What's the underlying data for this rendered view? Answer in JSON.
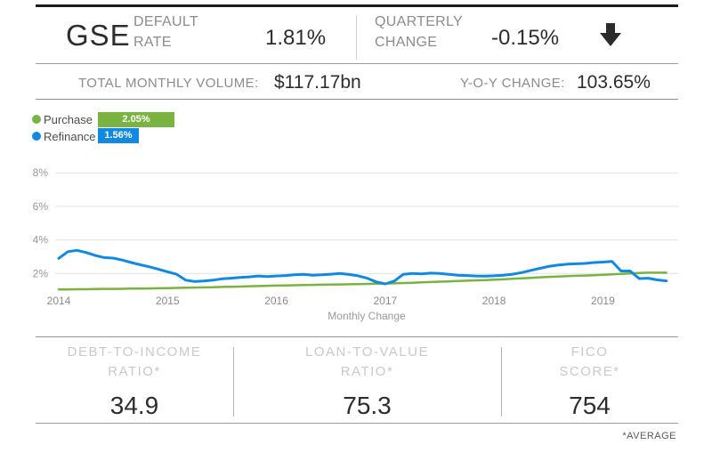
{
  "header": {
    "title": "GSE",
    "default_rate_label": "DEFAULT RATE",
    "default_rate_value": "1.81%",
    "quarterly_change_label": "QUARTERLY CHANGE",
    "quarterly_change_value": "-0.15%",
    "trend_direction": "down",
    "trend_icon": "down-arrow-icon",
    "trend_color": "#2b2b2b"
  },
  "volume_row": {
    "volume_label": "TOTAL MONTHLY VOLUME:",
    "volume_value": "$117.17bn",
    "yoy_label": "Y-O-Y CHANGE:",
    "yoy_value": "103.65%"
  },
  "legend": {
    "items": [
      {
        "label": "Purchase",
        "value": "2.05%",
        "color": "#79b342"
      },
      {
        "label": "Refinance",
        "value": "1.56%",
        "color": "#1289e0"
      }
    ]
  },
  "chart_data": {
    "type": "line",
    "title": "",
    "xlabel": "Monthly Change",
    "ylabel": "",
    "x_unit": "month",
    "x_start": "2014-01",
    "x_end": "2019-08",
    "x_tick_labels": [
      "2014",
      "2015",
      "2016",
      "2017",
      "2018",
      "2019"
    ],
    "y_ticks": [
      2,
      4,
      6,
      8
    ],
    "y_tick_labels": [
      "2%",
      "4%",
      "6%",
      "8%"
    ],
    "ylim": [
      0,
      9
    ],
    "grid": true,
    "legend_position": "top-left",
    "series": [
      {
        "name": "Purchase",
        "color": "#79b342",
        "stroke_width": 2.5,
        "values": [
          1.05,
          1.05,
          1.06,
          1.06,
          1.07,
          1.08,
          1.08,
          1.09,
          1.1,
          1.1,
          1.11,
          1.12,
          1.13,
          1.14,
          1.15,
          1.16,
          1.17,
          1.18,
          1.2,
          1.21,
          1.22,
          1.24,
          1.25,
          1.27,
          1.28,
          1.29,
          1.3,
          1.31,
          1.32,
          1.33,
          1.34,
          1.35,
          1.36,
          1.37,
          1.38,
          1.39,
          1.4,
          1.41,
          1.43,
          1.45,
          1.47,
          1.49,
          1.51,
          1.53,
          1.55,
          1.57,
          1.59,
          1.61,
          1.63,
          1.65,
          1.68,
          1.71,
          1.74,
          1.77,
          1.8,
          1.82,
          1.84,
          1.86,
          1.88,
          1.9,
          1.92,
          1.95,
          1.98,
          2.0,
          2.03,
          2.05,
          2.05,
          2.05
        ]
      },
      {
        "name": "Refinance",
        "color": "#1289e0",
        "stroke_width": 3,
        "values": [
          2.9,
          3.3,
          3.38,
          3.25,
          3.08,
          2.95,
          2.92,
          2.8,
          2.65,
          2.52,
          2.4,
          2.25,
          2.1,
          1.95,
          1.6,
          1.52,
          1.55,
          1.6,
          1.68,
          1.72,
          1.76,
          1.8,
          1.85,
          1.82,
          1.85,
          1.88,
          1.92,
          1.95,
          1.9,
          1.92,
          1.96,
          2.0,
          1.94,
          1.86,
          1.72,
          1.5,
          1.38,
          1.55,
          1.95,
          2.0,
          1.98,
          2.02,
          2.0,
          1.95,
          1.9,
          1.88,
          1.85,
          1.84,
          1.86,
          1.9,
          1.95,
          2.05,
          2.18,
          2.3,
          2.42,
          2.5,
          2.55,
          2.58,
          2.6,
          2.65,
          2.68,
          2.72,
          2.15,
          2.15,
          1.7,
          1.72,
          1.62,
          1.56
        ]
      }
    ]
  },
  "stats": {
    "items": [
      {
        "line1": "DEBT-TO-INCOME",
        "line2": "RATIO*",
        "value": "34.9"
      },
      {
        "line1": "LOAN-TO-VALUE",
        "line2": "RATIO*",
        "value": "75.3"
      },
      {
        "line1": "FICO",
        "line2": "SCORE*",
        "value": "754"
      }
    ],
    "footnote": "*AVERAGE"
  }
}
